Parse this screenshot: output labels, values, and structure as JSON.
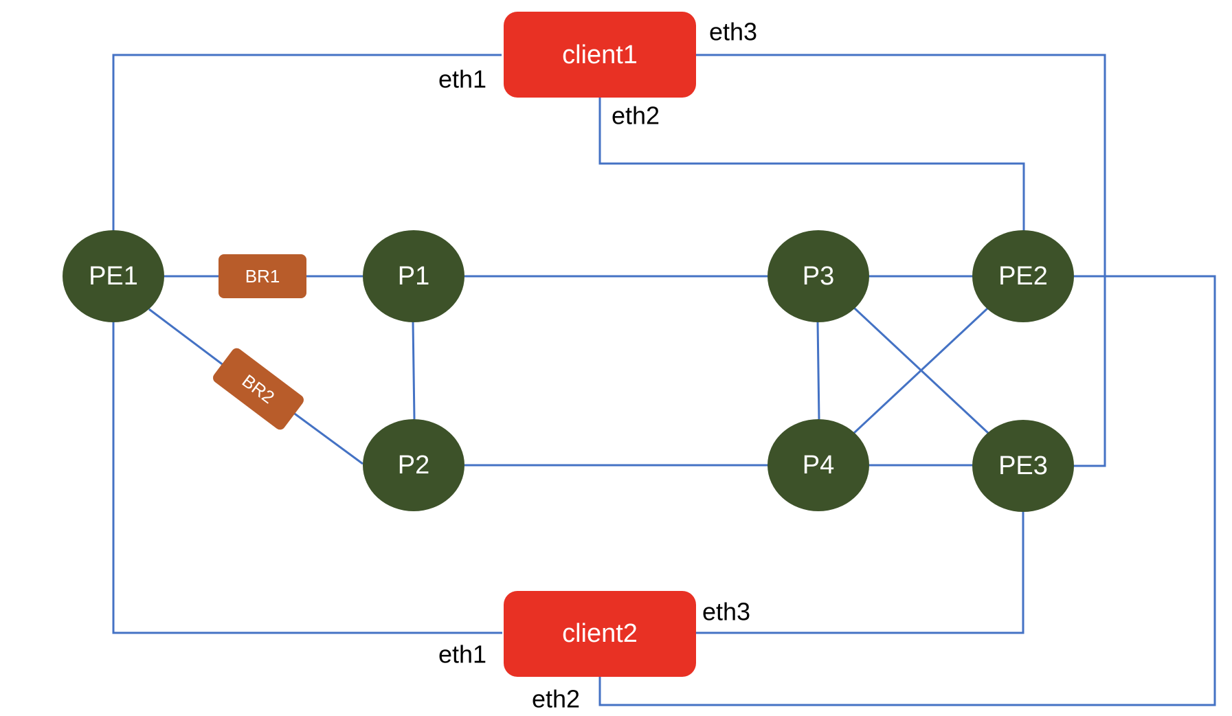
{
  "colors": {
    "link": "#4472C4",
    "router": "#3D5229",
    "client": "#E83124",
    "bridge": "#B85C2A"
  },
  "routers": {
    "pe1": "PE1",
    "p1": "P1",
    "p2": "P2",
    "p3": "P3",
    "p4": "P4",
    "pe2": "PE2",
    "pe3": "PE3"
  },
  "bridges": {
    "br1": "BR1",
    "br2": "BR2"
  },
  "clients": {
    "client1": {
      "name": "client1",
      "eth1": "eth1",
      "eth2": "eth2",
      "eth3": "eth3"
    },
    "client2": {
      "name": "client2",
      "eth1": "eth1",
      "eth2": "eth2",
      "eth3": "eth3"
    }
  }
}
